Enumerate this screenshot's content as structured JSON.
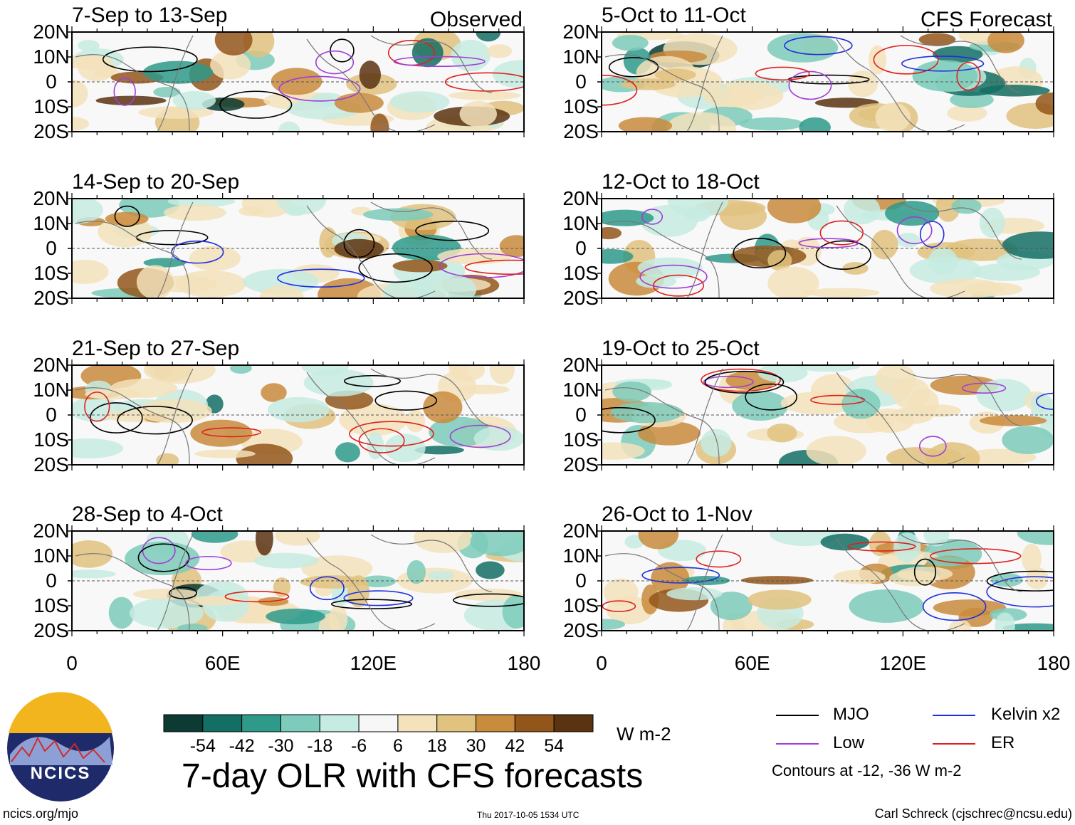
{
  "chart_data": {
    "type": "heatmap",
    "title": "7-day OLR with CFS forecasts",
    "units": "W m-2",
    "columns": [
      {
        "label": "Observed",
        "panels": [
          "7-Sep to 13-Sep",
          "14-Sep to 20-Sep",
          "21-Sep to 27-Sep",
          "28-Sep to 4-Oct"
        ]
      },
      {
        "label": "CFS Forecast",
        "panels": [
          "5-Oct to 11-Oct",
          "12-Oct to 18-Oct",
          "19-Oct to 25-Oct",
          "26-Oct to 1-Nov"
        ]
      }
    ],
    "y_ticks": [
      "20N",
      "10N",
      "0",
      "10S",
      "20S"
    ],
    "x_ticks": [
      "0",
      "60E",
      "120E",
      "180"
    ],
    "ylim": [
      -20,
      20
    ],
    "xlim": [
      0,
      180
    ],
    "colorbar": {
      "labels": [
        "-54",
        "-42",
        "-30",
        "-18",
        "-6",
        "6",
        "18",
        "30",
        "42",
        "54"
      ],
      "colors": [
        "#0b3b33",
        "#136f64",
        "#2e9a8a",
        "#7dcbbb",
        "#c5ebe2",
        "#f7f7f7",
        "#f3e2bb",
        "#e1c27f",
        "#c98b3c",
        "#93561a",
        "#5b3310"
      ]
    },
    "contour_legend": [
      {
        "name": "MJO",
        "color": "#000000"
      },
      {
        "name": "Kelvin x2",
        "color": "#1f2fdc"
      },
      {
        "name": "Low",
        "color": "#a03ed6"
      },
      {
        "name": "ER",
        "color": "#e0201c"
      }
    ],
    "contour_note": "Contours at -12, -36 W m-2"
  },
  "footer": {
    "url": "ncics.org/mjo",
    "timestamp": "Thu 2017-10-05 1534 UTC",
    "author": "Carl Schreck (cjschrec@ncsu.edu)"
  },
  "logo": {
    "text": "NCICS"
  }
}
